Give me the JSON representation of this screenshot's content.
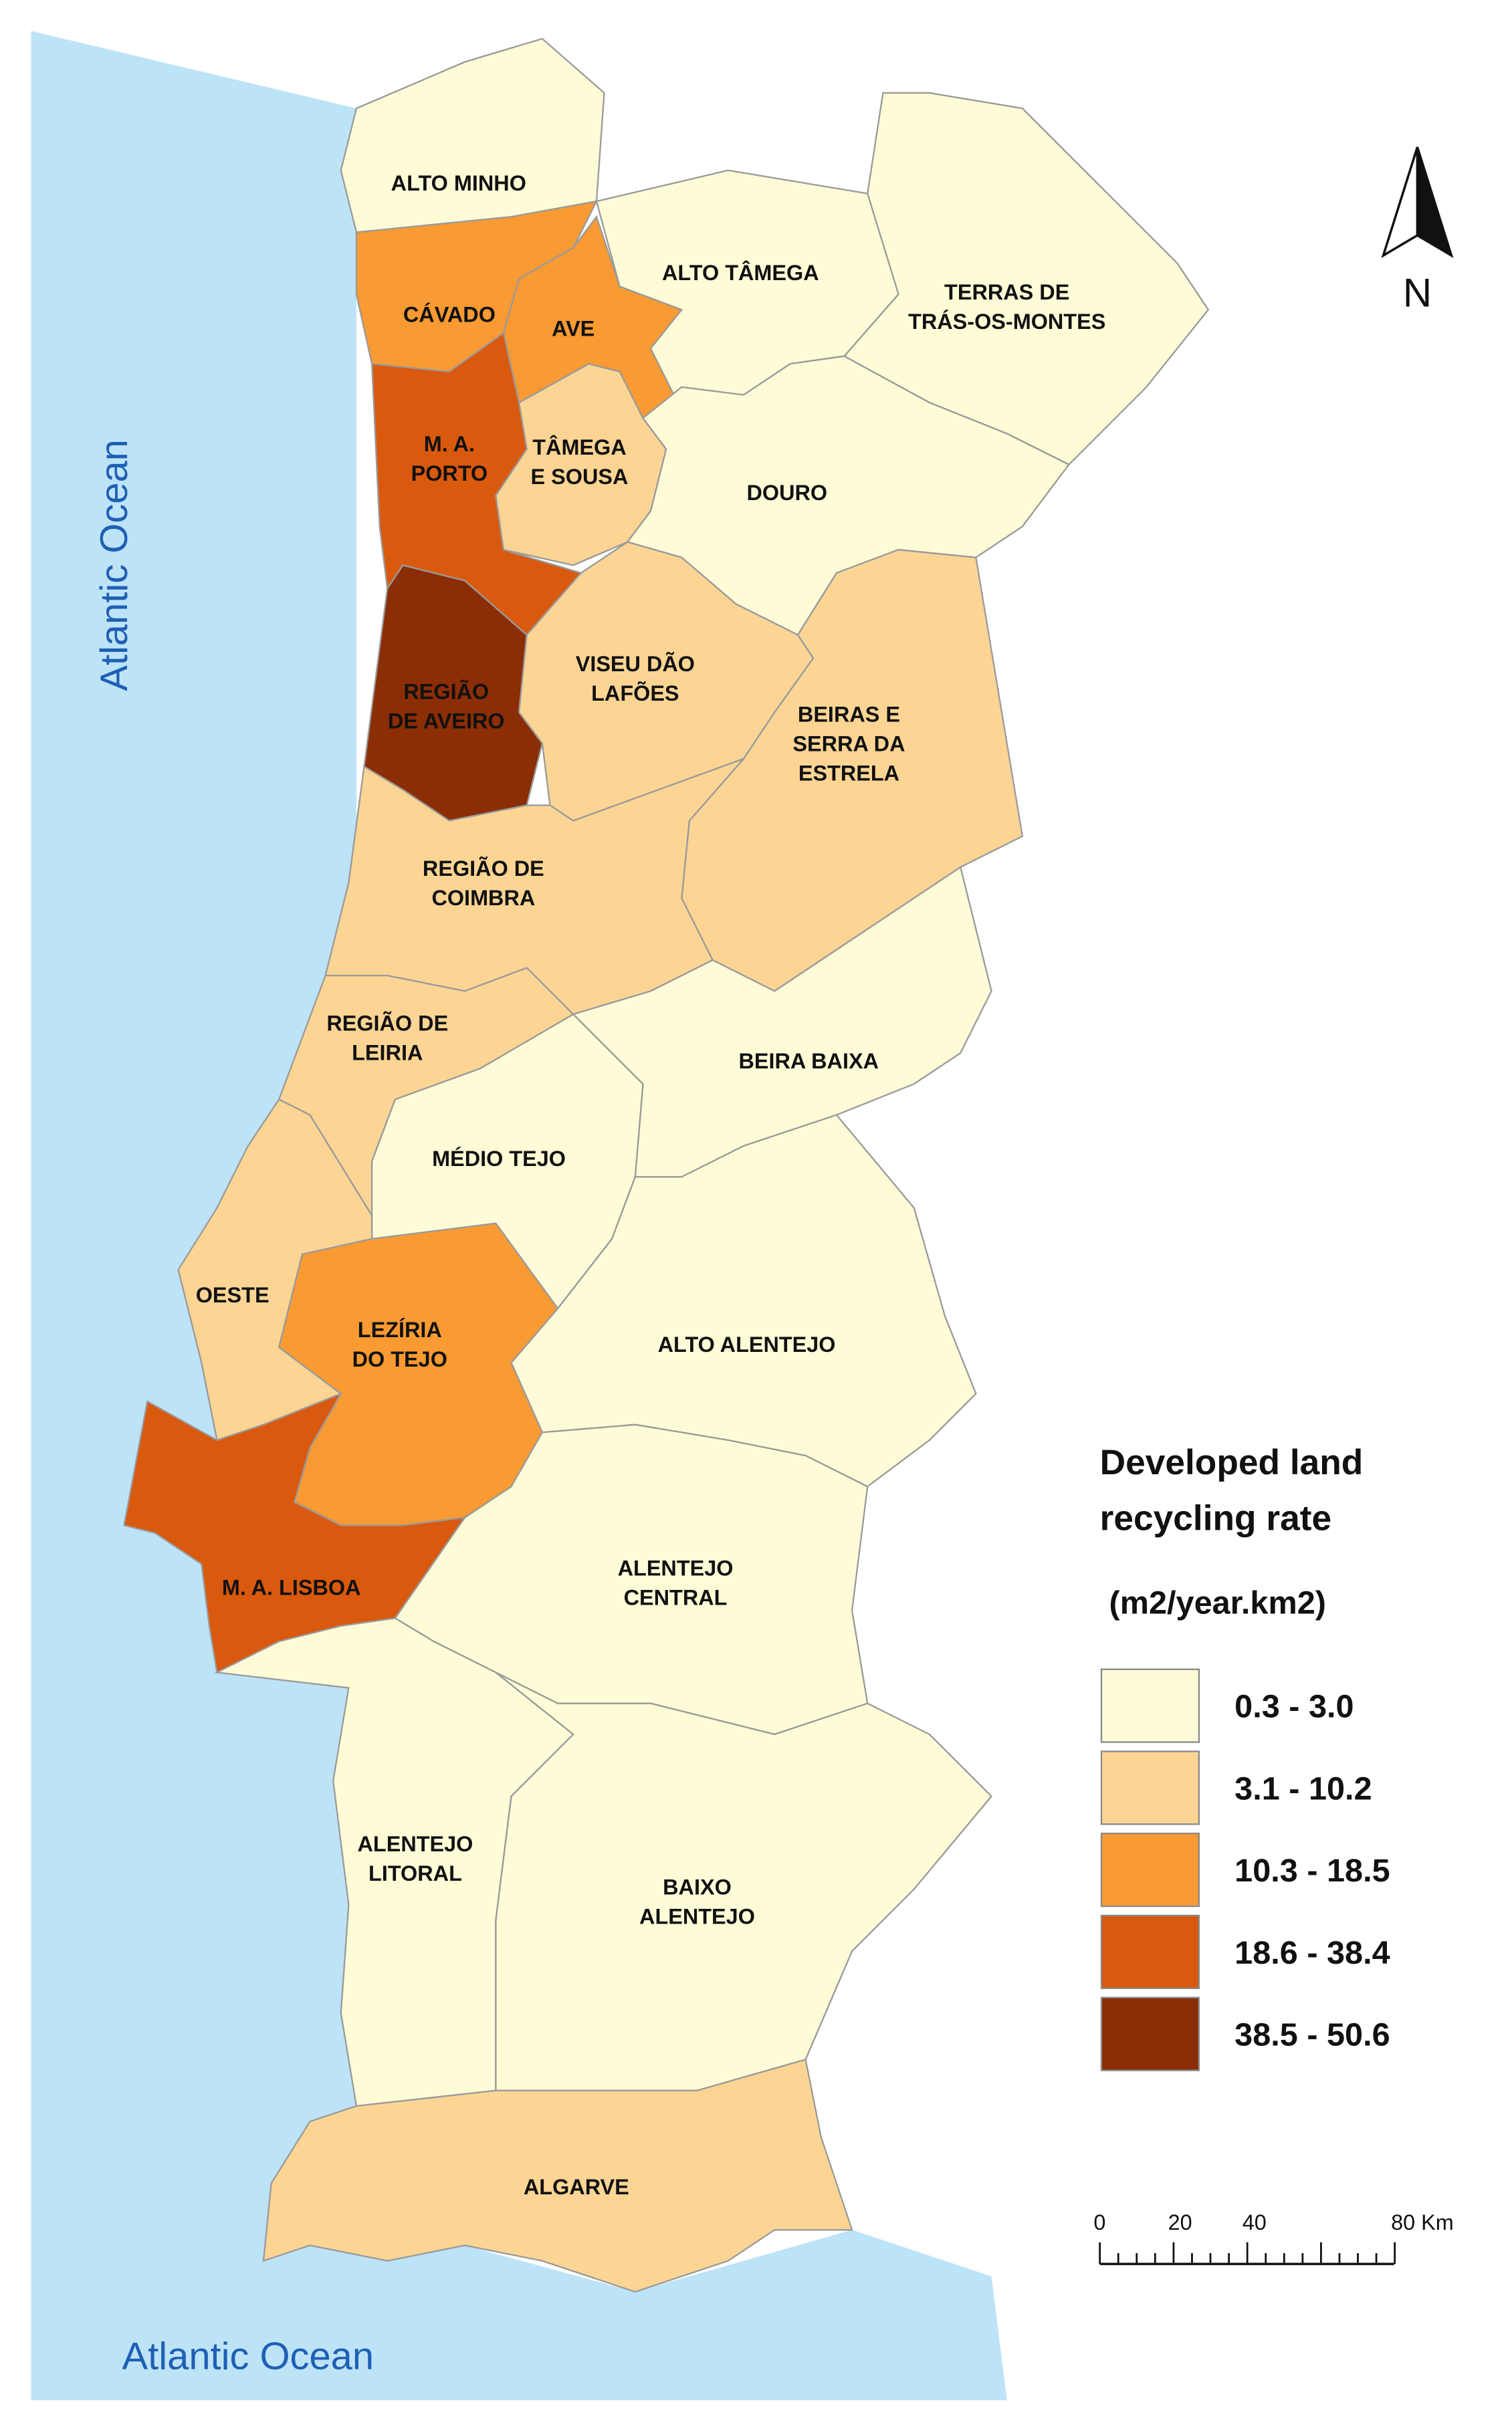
{
  "map": {
    "ocean_labels": [
      "Atlantic Ocean",
      "Atlantic Ocean"
    ],
    "north": "N",
    "regions": [
      {
        "label": [
          "ALTO MINHO"
        ],
        "color": "#fefcd7"
      },
      {
        "label": [
          "CÁVADO"
        ],
        "color": "#f99a33"
      },
      {
        "label": [
          "AVE"
        ],
        "color": "#f99a33"
      },
      {
        "label": [
          "ALTO TÂMEGA"
        ],
        "color": "#fefcd7"
      },
      {
        "label": [
          "TERRAS DE",
          "TRÁS-OS-MONTES"
        ],
        "color": "#fefcd7"
      },
      {
        "label": [
          "M. A.",
          "PORTO"
        ],
        "color": "#d9590f"
      },
      {
        "label": [
          "TÂMEGA",
          "E SOUSA"
        ],
        "color": "#fcd594"
      },
      {
        "label": [
          "DOURO"
        ],
        "color": "#fefcd7"
      },
      {
        "label": [
          "REGIÃO",
          "DE AVEIRO"
        ],
        "color": "#8b2d05"
      },
      {
        "label": [
          "VISEU DÃO",
          "LAFÕES"
        ],
        "color": "#fcd594"
      },
      {
        "label": [
          "BEIRAS E",
          "SERRA DA",
          "ESTRELA"
        ],
        "color": "#fcd594"
      },
      {
        "label": [
          "REGIÃO DE",
          "COIMBRA"
        ],
        "color": "#fcd594"
      },
      {
        "label": [
          "REGIÃO DE",
          "LEIRIA"
        ],
        "color": "#fcd594"
      },
      {
        "label": [
          "BEIRA BAIXA"
        ],
        "color": "#fefcd7"
      },
      {
        "label": [
          "MÉDIO TEJO"
        ],
        "color": "#fefcd7"
      },
      {
        "label": [
          "ALTO ALENTEJO"
        ],
        "color": "#fefcd7"
      },
      {
        "label": [
          "OESTE"
        ],
        "color": "#fcd594"
      },
      {
        "label": [
          "LEZÍRIA",
          "DO TEJO"
        ],
        "color": "#f99a33"
      },
      {
        "label": [
          "M. A. LISBOA"
        ],
        "color": "#d9590f"
      },
      {
        "label": [
          "ALENTEJO",
          "CENTRAL"
        ],
        "color": "#fefcd7"
      },
      {
        "label": [
          "ALENTEJO",
          "LITORAL"
        ],
        "color": "#fefcd7"
      },
      {
        "label": [
          "BAIXO",
          "ALENTEJO"
        ],
        "color": "#fefcd7"
      },
      {
        "label": [
          "ALGARVE"
        ],
        "color": "#fcd594"
      }
    ],
    "legend": {
      "title": [
        "Developed land",
        "recycling rate"
      ],
      "unit": "(m2/year.km2)",
      "classes": [
        {
          "label": "0.3 - 3.0",
          "color": "#fefcd7"
        },
        {
          "label": "3.1 - 10.2",
          "color": "#fcd594"
        },
        {
          "label": "10.3 - 18.5",
          "color": "#f99a33"
        },
        {
          "label": "18.6 - 38.4",
          "color": "#d9590f"
        },
        {
          "label": "38.5 - 50.6",
          "color": "#8b2d05"
        }
      ]
    },
    "scale_bar": {
      "labels": [
        "0",
        "20",
        "40",
        "80 Km"
      ]
    }
  }
}
